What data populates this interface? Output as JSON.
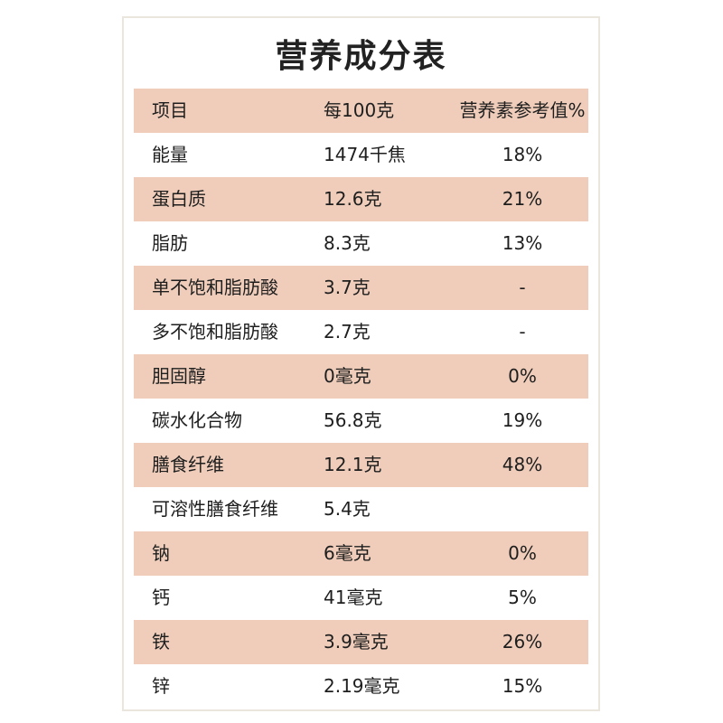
{
  "title": "营养成分表",
  "header": {
    "item": "项目",
    "per100": "每100克",
    "nrv": "营养素参考值%"
  },
  "rows": [
    {
      "name": "能量",
      "amount": "1474千焦",
      "nrv": "18%"
    },
    {
      "name": "蛋白质",
      "amount": "12.6克",
      "nrv": "21%"
    },
    {
      "name": "脂肪",
      "amount": "8.3克",
      "nrv": "13%"
    },
    {
      "name": "单不饱和脂肪酸",
      "amount": "3.7克",
      "nrv": "-"
    },
    {
      "name": "多不饱和脂肪酸",
      "amount": "2.7克",
      "nrv": "-"
    },
    {
      "name": "胆固醇",
      "amount": "0毫克",
      "nrv": "0%"
    },
    {
      "name": "碳水化合物",
      "amount": "56.8克",
      "nrv": "19%"
    },
    {
      "name": "膳食纤维",
      "amount": "12.1克",
      "nrv": "48%"
    },
    {
      "name": "可溶性膳食纤维",
      "amount": "5.4克",
      "nrv": ""
    },
    {
      "name": "钠",
      "amount": "6毫克",
      "nrv": "0%"
    },
    {
      "name": "钙",
      "amount": "41毫克",
      "nrv": "5%"
    },
    {
      "name": "铁",
      "amount": "3.9毫克",
      "nrv": "26%"
    },
    {
      "name": "锌",
      "amount": "2.19毫克",
      "nrv": "15%"
    }
  ],
  "colors": {
    "shaded_row": "#efcdba",
    "border": "#ebe6dd"
  }
}
